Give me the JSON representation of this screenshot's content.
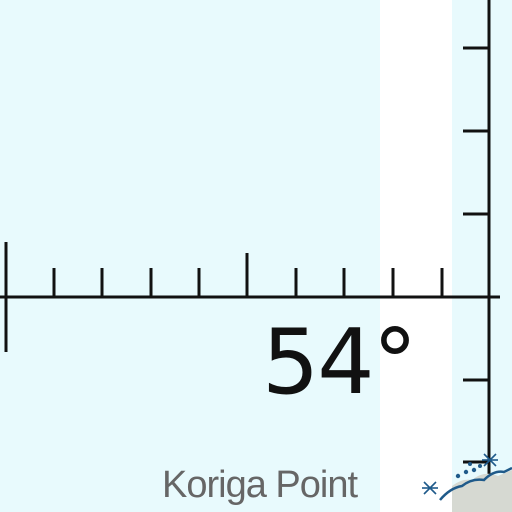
{
  "map": {
    "latitude_label": "54°",
    "place_label": "Koriga Point",
    "water_color": "#E8FAFD",
    "clear_strip_color": "#FFFFFF",
    "land_color": "#D6D9D2",
    "graticule_color": "#111111",
    "place_label_color": "#666666",
    "symbols": [
      "rock-hazard-icon",
      "coastline"
    ]
  }
}
